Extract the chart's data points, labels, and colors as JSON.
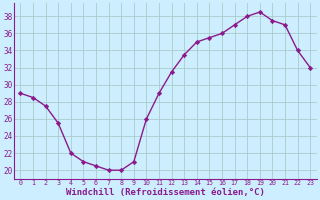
{
  "x": [
    0,
    1,
    2,
    3,
    4,
    5,
    6,
    7,
    8,
    9,
    10,
    11,
    12,
    13,
    14,
    15,
    16,
    17,
    18,
    19,
    20,
    21,
    22,
    23
  ],
  "y": [
    29,
    28.5,
    27.5,
    25.5,
    22,
    21,
    20.5,
    20,
    20,
    21,
    26,
    29,
    31.5,
    33.5,
    35,
    35.5,
    36,
    37,
    38,
    38.5,
    37.5,
    37,
    34,
    32
  ],
  "line_color": "#8b1a8b",
  "marker": "D",
  "markersize": 2.2,
  "linewidth": 1.0,
  "background_color": "#cceeff",
  "grid_color": "#aacccc",
  "xlabel": "Windchill (Refroidissement éolien,°C)",
  "xlabel_fontsize": 6.5,
  "ytick_labels": [
    "20",
    "22",
    "24",
    "26",
    "28",
    "30",
    "32",
    "34",
    "36",
    "38"
  ],
  "ytick_values": [
    20,
    22,
    24,
    26,
    28,
    30,
    32,
    34,
    36,
    38
  ],
  "xlim": [
    -0.5,
    23.5
  ],
  "ylim": [
    19.0,
    39.5
  ]
}
